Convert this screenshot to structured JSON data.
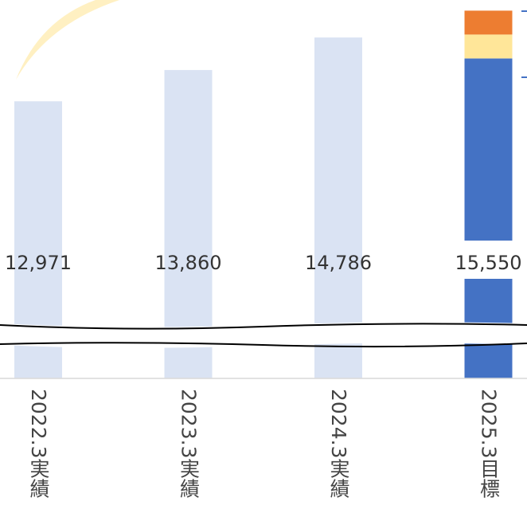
{
  "chart_data": {
    "type": "stacked-bar",
    "categories": [
      "2022.3実績",
      "2023.3実績",
      "2024.3実績",
      "2025.3目標"
    ],
    "series": [
      {
        "values": [
          12971,
          13860,
          14786,
          14190
        ],
        "colors": [
          "#dae3f3",
          "#dae3f3",
          "#dae3f3",
          "#4472c4"
        ]
      },
      {
        "values": [
          null,
          null,
          null,
          680
        ],
        "color": "#ffe699"
      },
      {
        "values": [
          null,
          null,
          null,
          680
        ],
        "color": "#ed7d31"
      }
    ],
    "totals": [
      12971,
      13860,
      14786,
      15550
    ],
    "value_labels": [
      "12,971",
      "13,860",
      "14,786",
      "15,550"
    ],
    "ylim": [
      6900,
      15853
    ],
    "axis_break": true
  }
}
